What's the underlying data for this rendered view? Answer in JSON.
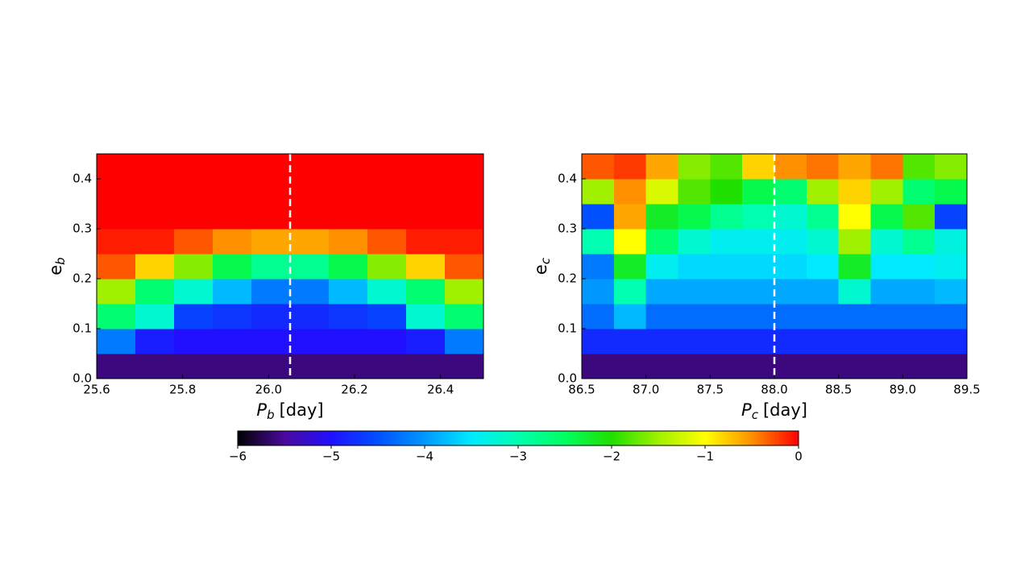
{
  "chart_data": [
    {
      "type": "heatmap",
      "xlabel": {
        "symbol": "P",
        "sub": "b",
        "unit": "[day]"
      },
      "ylabel": {
        "symbol": "e",
        "sub": "b"
      },
      "xlim": [
        25.6,
        26.5
      ],
      "ylim": [
        0,
        0.45
      ],
      "xticks": [
        25.6,
        25.8,
        {
          "value": 26,
          "label": "26.0"
        },
        26.2,
        26.4
      ],
      "yticks": [
        {
          "value": 0,
          "label": "0.0"
        },
        0.1,
        0.2,
        0.3,
        0.4
      ],
      "vline": 26.05,
      "vline_color": "#ffffff",
      "xbins": [
        25.6,
        25.69,
        25.78,
        25.87,
        25.96,
        26.05,
        26.14,
        26.23,
        26.32,
        26.41,
        26.5
      ],
      "ybins": [
        0,
        0.05,
        0.1,
        0.15,
        0.2,
        0.25,
        0.3,
        0.35,
        0.4,
        0.45
      ],
      "z": [
        [
          -5.6,
          -5.6,
          -5.6,
          -5.6,
          -5.6,
          -5.6,
          -5.6,
          -5.6,
          -5.6,
          -5.6
        ],
        [
          -4.2,
          -4.9,
          -5,
          -5,
          -5,
          -5,
          -5,
          -5,
          -4.9,
          -4.2
        ],
        [
          -2.6,
          -3.2,
          -4.6,
          -4.7,
          -4.8,
          -4.8,
          -4.7,
          -4.6,
          -3.2,
          -2.6
        ],
        [
          -1.5,
          -2.6,
          -3.2,
          -3.8,
          -4.2,
          -4.2,
          -3.8,
          -3.2,
          -2.6,
          -1.5
        ],
        [
          -0.3,
          -0.8,
          -1.6,
          -2.4,
          -2.8,
          -2.8,
          -2.4,
          -1.6,
          -0.8,
          -0.3
        ],
        [
          -0.1,
          -0.1,
          -0.3,
          -0.5,
          -0.6,
          -0.6,
          -0.5,
          -0.3,
          -0.1,
          -0.1
        ],
        [
          0,
          0,
          0,
          0,
          0,
          0,
          0,
          0,
          0,
          0
        ],
        [
          0,
          0,
          0,
          0,
          0,
          0,
          0,
          0,
          0,
          0
        ],
        [
          0,
          0,
          0,
          0,
          0,
          0,
          0,
          0,
          0,
          0
        ]
      ]
    },
    {
      "type": "heatmap",
      "xlabel": {
        "symbol": "P",
        "sub": "c",
        "unit": "[day]"
      },
      "ylabel": {
        "symbol": "e",
        "sub": "c"
      },
      "xlim": [
        86.5,
        89.5
      ],
      "ylim": [
        0,
        0.45
      ],
      "xticks": [
        86.5,
        {
          "value": 87,
          "label": "87.0"
        },
        87.5,
        {
          "value": 88,
          "label": "88.0"
        },
        88.5,
        {
          "value": 89,
          "label": "89.0"
        },
        89.5
      ],
      "yticks": [
        {
          "value": 0,
          "label": "0.0"
        },
        0.1,
        0.2,
        0.3,
        0.4
      ],
      "vline": 88,
      "vline_color": "#ffffff",
      "xbins": [
        86.5,
        86.75,
        87,
        87.25,
        87.5,
        87.75,
        88,
        88.25,
        88.5,
        88.75,
        89,
        89.25,
        89.5
      ],
      "ybins": [
        0,
        0.05,
        0.1,
        0.15,
        0.2,
        0.25,
        0.3,
        0.35,
        0.4,
        0.45
      ],
      "z": [
        [
          -5.6,
          -5.6,
          -5.6,
          -5.6,
          -5.6,
          -5.6,
          -5.6,
          -5.6,
          -5.6,
          -5.6,
          -5.6,
          -5.6
        ],
        [
          -4.8,
          -4.8,
          -4.8,
          -4.8,
          -4.8,
          -4.8,
          -4.8,
          -4.8,
          -4.8,
          -4.8,
          -4.8,
          -4.8
        ],
        [
          -4.3,
          -3.8,
          -4.3,
          -4.3,
          -4.3,
          -4.3,
          -4.3,
          -4.3,
          -4.3,
          -4.3,
          -4.3,
          -4.3
        ],
        [
          -4,
          -3,
          -3.9,
          -3.9,
          -3.9,
          -3.9,
          -3.9,
          -3.9,
          -3.2,
          -3.9,
          -3.9,
          -3.8
        ],
        [
          -4.2,
          -2.2,
          -3.4,
          -3.6,
          -3.6,
          -3.6,
          -3.6,
          -3.5,
          -2.2,
          -3.5,
          -3.5,
          -3.4
        ],
        [
          -3,
          -1,
          -2.6,
          -3.2,
          -3.4,
          -3.4,
          -3.4,
          -3.2,
          -1.5,
          -3.2,
          -2.8,
          -3.3
        ],
        [
          -4.5,
          -0.6,
          -2.2,
          -2.4,
          -2.8,
          -3,
          -3.2,
          -2.8,
          -1,
          -2.4,
          -1.8,
          -4.6
        ],
        [
          -1.5,
          -0.5,
          -1.2,
          -1.8,
          -2,
          -2.4,
          -2.6,
          -1.5,
          -0.8,
          -1.5,
          -2.6,
          -2.4
        ],
        [
          -0.3,
          -0.2,
          -0.6,
          -1.6,
          -1.8,
          -0.8,
          -0.5,
          -0.4,
          -0.6,
          -0.4,
          -1.8,
          -1.6
        ]
      ]
    },
    {
      "type": "colorbar",
      "clim": [
        -6,
        0
      ],
      "ticks": [
        {
          "value": -6,
          "label": "−6"
        },
        {
          "value": -5,
          "label": "−5"
        },
        {
          "value": -4,
          "label": "−4"
        },
        {
          "value": -3,
          "label": "−3"
        },
        {
          "value": -2,
          "label": "−2"
        },
        {
          "value": -1,
          "label": "−1"
        },
        0
      ],
      "colormap": [
        "#000000",
        "#4a0a9c",
        "#2010ff",
        "#0050ff",
        "#0098ff",
        "#00eaff",
        "#00ffb0",
        "#00ff60",
        "#20e000",
        "#a0f000",
        "#ffff00",
        "#ff9000",
        "#ff0000"
      ]
    }
  ]
}
